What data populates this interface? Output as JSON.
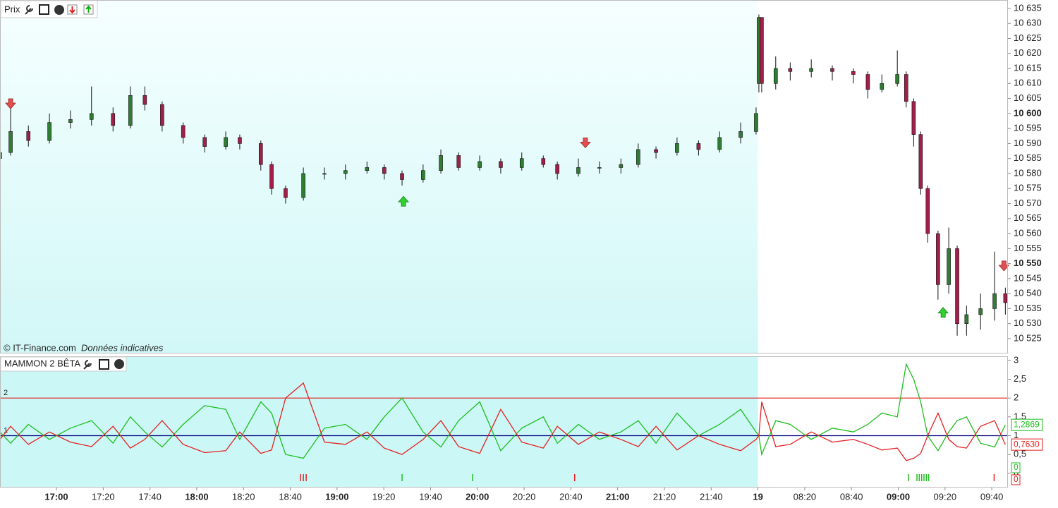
{
  "chart_data": [
    {
      "type": "candlestick",
      "title": "Prix",
      "credit": "© IT-Finance.com",
      "credit_note": "Données indicatives",
      "up_color": "#2e7d32",
      "down_color": "#a0204a",
      "shaded_until": 15.0,
      "xlim": [
        -1.207,
        20.33
      ],
      "xticks": [
        {
          "value": 0,
          "label": "17:00",
          "bold": true
        },
        {
          "value": 1,
          "label": "17:20"
        },
        {
          "value": 2,
          "label": "17:40"
        },
        {
          "value": 3,
          "label": "18:00",
          "bold": true
        },
        {
          "value": 4,
          "label": "18:20"
        },
        {
          "value": 5,
          "label": "18:40"
        },
        {
          "value": 6,
          "label": "19:00",
          "bold": true
        },
        {
          "value": 7,
          "label": "19:20"
        },
        {
          "value": 8,
          "label": "19:40"
        },
        {
          "value": 9,
          "label": "20:00",
          "bold": true
        },
        {
          "value": 10,
          "label": "20:20"
        },
        {
          "value": 11,
          "label": "20:40"
        },
        {
          "value": 12,
          "label": "21:00",
          "bold": true
        },
        {
          "value": 13,
          "label": "21:20"
        },
        {
          "value": 14,
          "label": "21:40"
        },
        {
          "value": 15,
          "label": "19",
          "bold": true
        },
        {
          "value": 16,
          "label": "08:20"
        },
        {
          "value": 17,
          "label": "08:40"
        },
        {
          "value": 18,
          "label": "09:00",
          "bold": true
        },
        {
          "value": 19,
          "label": "09:20"
        },
        {
          "value": 20,
          "label": "09:40"
        }
      ],
      "ylim": [
        10520.3,
        10637.8
      ],
      "yticks": [
        {
          "value": 10525,
          "label": "10 525"
        },
        {
          "value": 10530,
          "label": "10 530"
        },
        {
          "value": 10535,
          "label": "10 535"
        },
        {
          "value": 10540,
          "label": "10 540"
        },
        {
          "value": 10545,
          "label": "10 545"
        },
        {
          "value": 10550,
          "label": "10 550",
          "bold": true
        },
        {
          "value": 10555,
          "label": "10 555"
        },
        {
          "value": 10560,
          "label": "10 560"
        },
        {
          "value": 10565,
          "label": "10 565"
        },
        {
          "value": 10570,
          "label": "10 570"
        },
        {
          "value": 10575,
          "label": "10 575"
        },
        {
          "value": 10580,
          "label": "10 580"
        },
        {
          "value": 10585,
          "label": "10 585"
        },
        {
          "value": 10590,
          "label": "10 590"
        },
        {
          "value": 10595,
          "label": "10 595"
        },
        {
          "value": 10600,
          "label": "10 600",
          "bold": true
        },
        {
          "value": 10605,
          "label": "10 605"
        },
        {
          "value": 10610,
          "label": "10 610"
        },
        {
          "value": 10615,
          "label": "10 615"
        },
        {
          "value": 10620,
          "label": "10 620"
        },
        {
          "value": 10625,
          "label": "10 625"
        },
        {
          "value": 10630,
          "label": "10 630"
        },
        {
          "value": 10635,
          "label": "10 635"
        }
      ],
      "x": [
        -1.21,
        -0.98,
        -0.6,
        -0.15,
        0.3,
        0.75,
        1.21,
        1.58,
        1.89,
        2.26,
        2.71,
        3.17,
        3.62,
        3.92,
        4.37,
        4.6,
        4.9,
        5.28,
        5.73,
        6.18,
        6.64,
        7.01,
        7.39,
        7.84,
        8.22,
        8.6,
        9.05,
        9.5,
        9.95,
        10.41,
        10.71,
        11.16,
        11.61,
        12.07,
        12.44,
        12.82,
        13.27,
        13.73,
        14.18,
        14.63,
        14.96,
        15.02,
        15.08,
        15.38,
        15.69,
        16.14,
        16.59,
        17.04,
        17.35,
        17.65,
        17.98,
        18.17,
        18.33,
        18.48,
        18.63,
        18.85,
        19.08,
        19.26,
        19.46,
        19.76,
        20.06,
        20.29
      ],
      "open": [
        10585,
        10587,
        10594,
        10591,
        10597,
        10598,
        10600,
        10596,
        10606,
        10603,
        10596,
        10592,
        10589,
        10592,
        10590,
        10583,
        10575,
        10572,
        10580,
        10580,
        10581,
        10582,
        10580,
        10578,
        10581,
        10586,
        10582,
        10584,
        10582,
        10585,
        10583,
        10580,
        10582,
        10582,
        10583,
        10588,
        10587,
        10590,
        10588,
        10592,
        10594,
        10610,
        10632,
        10610,
        10615,
        10614,
        10615,
        10614,
        10613,
        10608,
        10610,
        10613,
        10604,
        10593,
        10575,
        10560,
        10543,
        10555,
        10530,
        10533,
        10535,
        10540
      ],
      "close": [
        10587,
        10594,
        10591,
        10597,
        10598,
        10600,
        10596,
        10606,
        10603,
        10596,
        10592,
        10589,
        10592,
        10590,
        10583,
        10575,
        10572,
        10580,
        10580,
        10581,
        10582,
        10580,
        10578,
        10581,
        10586,
        10582,
        10584,
        10582,
        10585,
        10583,
        10580,
        10582,
        10582,
        10583,
        10588,
        10587,
        10590,
        10588,
        10592,
        10594,
        10600,
        10632,
        10610,
        10615,
        10614,
        10615,
        10614,
        10613,
        10608,
        10610,
        10613,
        10604,
        10593,
        10575,
        10560,
        10543,
        10555,
        10530,
        10533,
        10535,
        10540,
        10537
      ],
      "high": [
        10590,
        10604,
        10596,
        10600,
        10601,
        10609,
        10602,
        10609,
        10609,
        10604,
        10597,
        10593,
        10594,
        10593,
        10591,
        10584,
        10576,
        10582,
        10582,
        10583,
        10584,
        10583,
        10581,
        10583,
        10588,
        10587,
        10586,
        10585,
        10587,
        10586,
        10584,
        10585,
        10584,
        10585,
        10590,
        10589,
        10592,
        10591,
        10594,
        10597,
        10602,
        10633,
        10632,
        10619,
        10617,
        10618,
        10616,
        10615,
        10614,
        10613,
        10621,
        10614,
        10605,
        10594,
        10576,
        10561,
        10562,
        10556,
        10536,
        10540,
        10554,
        10542
      ],
      "low": [
        10584,
        10586,
        10589,
        10590,
        10595,
        10596,
        10594,
        10595,
        10601,
        10594,
        10590,
        10587,
        10588,
        10588,
        10581,
        10573,
        10570,
        10571,
        10578,
        10578,
        10580,
        10578,
        10576,
        10577,
        10580,
        10581,
        10581,
        10580,
        10581,
        10582,
        10578,
        10579,
        10580,
        10580,
        10582,
        10585,
        10586,
        10586,
        10587,
        10590,
        10593,
        10607,
        10607,
        10608,
        10611,
        10612,
        10611,
        10610,
        10605,
        10607,
        10609,
        10602,
        10589,
        10573,
        10557,
        10538,
        10540,
        10526,
        10526,
        10528,
        10531,
        10533
      ],
      "signals": [
        {
          "x": -0.98,
          "price": 10603,
          "dir": "down"
        },
        {
          "x": 7.42,
          "price": 10571,
          "dir": "up"
        },
        {
          "x": 11.31,
          "price": 10590,
          "dir": "down"
        },
        {
          "x": 18.96,
          "price": 10534,
          "dir": "up"
        },
        {
          "x": 20.26,
          "price": 10549,
          "dir": "down"
        }
      ]
    },
    {
      "type": "line",
      "title": "MAMMON 2 BÊTA",
      "shaded_until": 15.0,
      "xlim": [
        -1.207,
        20.33
      ],
      "ylim": [
        -0.36,
        3.11
      ],
      "yticks": [
        0,
        {
          "value": 0.5,
          "label": "0,5"
        },
        1,
        {
          "value": 1.5,
          "label": "1,5"
        },
        2,
        {
          "value": 2.5,
          "label": "2,5"
        },
        3
      ],
      "levels": [
        {
          "value": 2,
          "label": "2",
          "color": "#e02020"
        },
        {
          "value": 1,
          "label": "1",
          "color": "#000080"
        }
      ],
      "x": [
        -1.21,
        -0.98,
        -0.6,
        -0.15,
        0.3,
        0.75,
        1.21,
        1.58,
        1.89,
        2.26,
        2.71,
        3.17,
        3.62,
        3.92,
        4.37,
        4.6,
        4.9,
        5.28,
        5.73,
        6.18,
        6.64,
        7.01,
        7.39,
        7.84,
        8.22,
        8.6,
        9.05,
        9.5,
        9.95,
        10.41,
        10.71,
        11.16,
        11.61,
        12.07,
        12.44,
        12.82,
        13.27,
        13.73,
        14.18,
        14.63,
        14.96,
        15.02,
        15.08,
        15.38,
        15.69,
        16.14,
        16.59,
        17.04,
        17.35,
        17.65,
        17.98,
        18.17,
        18.33,
        18.48,
        18.63,
        18.85,
        19.08,
        19.26,
        19.46,
        19.76,
        20.06,
        20.29
      ],
      "series": [
        {
          "name": "Vert",
          "color": "#1fbf1f",
          "last_label": "1,2869",
          "count_label": "0",
          "marks": [
            7.39,
            8.9,
            18.22,
            18.4,
            18.45,
            18.5,
            18.55,
            18.6,
            18.65
          ],
          "values": [
            1.1,
            0.8,
            1.3,
            0.9,
            1.2,
            1.4,
            0.8,
            1.5,
            1.1,
            0.7,
            1.3,
            1.8,
            1.7,
            0.9,
            1.9,
            1.6,
            0.5,
            0.4,
            1.2,
            1.3,
            0.9,
            1.5,
            2.0,
            1.1,
            0.7,
            1.4,
            1.9,
            0.6,
            1.2,
            1.5,
            0.8,
            1.3,
            0.9,
            1.1,
            1.4,
            0.8,
            1.6,
            1.0,
            1.3,
            1.7,
            1.1,
            1.0,
            0.5,
            1.4,
            1.3,
            0.9,
            1.2,
            1.1,
            1.3,
            1.6,
            1.5,
            2.9,
            2.5,
            1.9,
            1.0,
            0.6,
            1.1,
            1.4,
            1.5,
            0.8,
            0.7,
            1.2869
          ]
        },
        {
          "name": "Rouge",
          "color": "#e62020",
          "last_label": "0,7630",
          "count_label": "0",
          "marks": [
            5.22,
            5.28,
            5.34,
            11.08,
            20.05
          ],
          "values": [
            0.9,
            1.25,
            0.77,
            1.1,
            0.83,
            0.71,
            1.25,
            0.67,
            0.9,
            1.4,
            0.77,
            0.55,
            0.6,
            1.1,
            0.53,
            0.62,
            2.0,
            2.4,
            0.83,
            0.77,
            1.1,
            0.67,
            0.5,
            0.9,
            1.4,
            0.71,
            0.53,
            1.7,
            0.83,
            0.67,
            1.25,
            0.77,
            1.1,
            0.9,
            0.71,
            1.25,
            0.62,
            1.0,
            0.77,
            0.6,
            0.9,
            1.0,
            1.9,
            0.71,
            0.77,
            1.1,
            0.83,
            0.9,
            0.77,
            0.62,
            0.67,
            0.34,
            0.4,
            0.53,
            1.0,
            1.6,
            0.9,
            0.71,
            0.67,
            1.25,
            1.4,
            0.763
          ]
        }
      ]
    }
  ]
}
